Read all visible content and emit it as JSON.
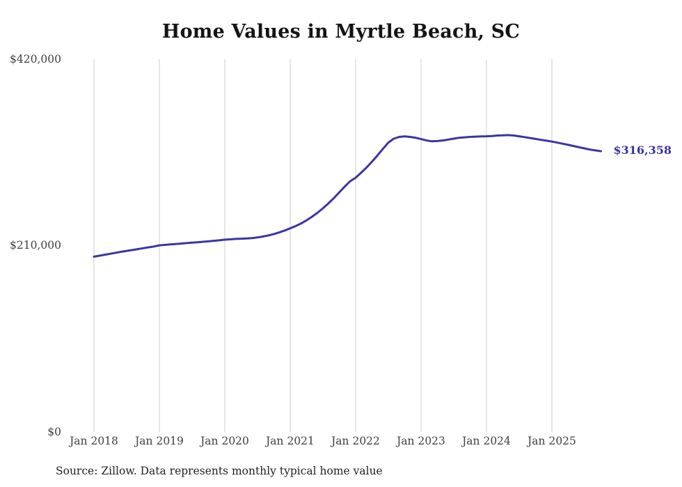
{
  "title": "Home Values in Myrtle Beach, SC",
  "source_note": "Source: Zillow. Data represents monthly typical home value",
  "chart_data": {
    "type": "line",
    "title": "Home Values in Myrtle Beach, SC",
    "xlabel": "",
    "ylabel": "",
    "ylim": [
      0,
      420000
    ],
    "grid": "vertical-only",
    "legend": "none",
    "frequency": "monthly",
    "x_start": "2018-01",
    "x_end": "2025-10",
    "latest_value": 316358,
    "end_label": "$316,358",
    "line_color": "#3b34a3",
    "grid_color": "#cccccc",
    "y_ticks": [
      {
        "value": 420000,
        "label": "$420,000"
      },
      {
        "value": 210000,
        "label": "$210,000"
      },
      {
        "value": 0,
        "label": "$0"
      }
    ],
    "x_ticks": [
      {
        "month_index": 0,
        "label": "Jan 2018"
      },
      {
        "month_index": 12,
        "label": "Jan 2019"
      },
      {
        "month_index": 24,
        "label": "Jan 2020"
      },
      {
        "month_index": 36,
        "label": "Jan 2021"
      },
      {
        "month_index": 48,
        "label": "Jan 2022"
      },
      {
        "month_index": 60,
        "label": "Jan 2023"
      },
      {
        "month_index": 72,
        "label": "Jan 2024"
      },
      {
        "month_index": 84,
        "label": "Jan 2025"
      }
    ],
    "values": [
      197500,
      198600,
      199700,
      200800,
      201900,
      203000,
      204000,
      205000,
      206000,
      207000,
      208000,
      209000,
      210300,
      210800,
      211300,
      211800,
      212300,
      212800,
      213300,
      213800,
      214300,
      214800,
      215400,
      216000,
      216700,
      217100,
      217500,
      217800,
      218100,
      218500,
      219200,
      220200,
      221500,
      223000,
      224800,
      227000,
      229500,
      232000,
      235000,
      238500,
      242500,
      247000,
      252000,
      257500,
      263500,
      270000,
      276500,
      282500,
      286500,
      292000,
      298000,
      304500,
      311500,
      319000,
      326000,
      330500,
      332500,
      333000,
      332500,
      331500,
      330000,
      328500,
      327500,
      327800,
      328500,
      329500,
      330500,
      331500,
      332000,
      332500,
      332800,
      333000,
      333200,
      333500,
      334000,
      334300,
      334500,
      334000,
      333200,
      332200,
      331200,
      330200,
      329200,
      328200,
      327200,
      326000,
      324800,
      323500,
      322200,
      320800,
      319500,
      318200,
      317200,
      316358
    ]
  }
}
